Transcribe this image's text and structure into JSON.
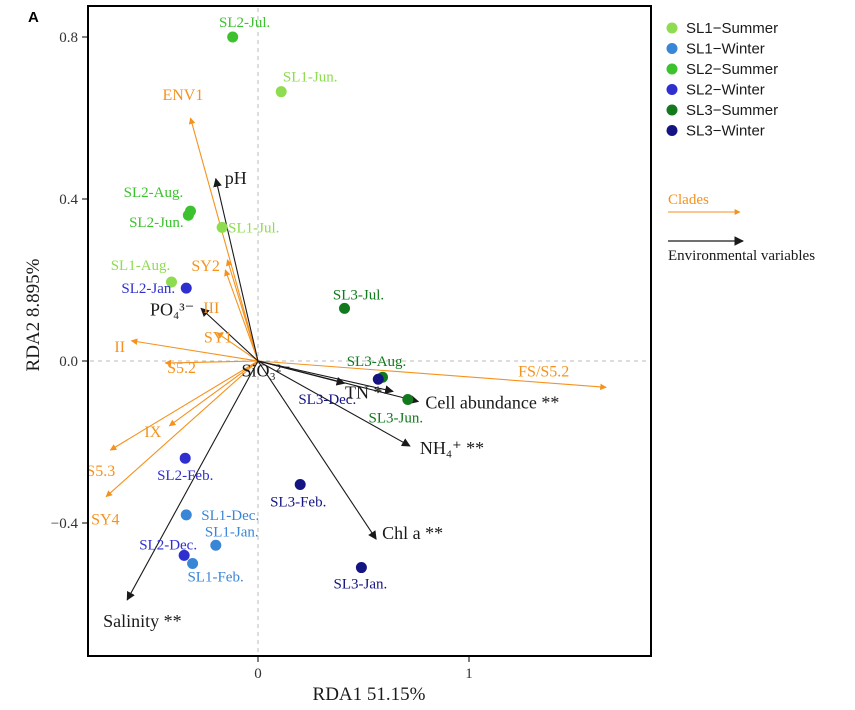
{
  "panel_label": "A",
  "chart_data": {
    "type": "scatter",
    "subtype": "RDA biplot",
    "xlabel": "RDA1 51.15%",
    "ylabel": "RDA2 8.895%",
    "xlim": [
      -0.8,
      1.85
    ],
    "ylim": [
      -0.73,
      0.88
    ],
    "xticks": [
      0,
      1
    ],
    "yticks": [
      -0.4,
      0.0,
      0.4,
      0.8
    ],
    "xtick_labels": [
      "0",
      "1"
    ],
    "ytick_labels": [
      "−0.4",
      "0.0",
      "0.4",
      "0.8"
    ],
    "grid": false,
    "zero_lines": true,
    "legend_position": "top-right, outside plot",
    "groups": [
      {
        "name": "SL1−Summer",
        "color": "#8edc50"
      },
      {
        "name": "SL1−Winter",
        "color": "#3a86d6"
      },
      {
        "name": "SL2−Summer",
        "color": "#3cc22e"
      },
      {
        "name": "SL2−Winter",
        "color": "#2f2fcf"
      },
      {
        "name": "SL3−Summer",
        "color": "#127a1c"
      },
      {
        "name": "SL3−Winter",
        "color": "#141482"
      }
    ],
    "points": [
      {
        "label": "SL2-Jul.",
        "x": -0.12,
        "y": 0.8,
        "group": 2
      },
      {
        "label": "SL1-Jun.",
        "x": 0.11,
        "y": 0.665,
        "group": 0
      },
      {
        "label": "SL2-Aug.",
        "x": -0.32,
        "y": 0.37,
        "group": 2
      },
      {
        "label": "SL2-Jun.",
        "x": -0.33,
        "y": 0.36,
        "group": 2
      },
      {
        "label": "SL1-Jul.",
        "x": -0.17,
        "y": 0.33,
        "group": 0
      },
      {
        "label": "SL1-Aug.",
        "x": -0.41,
        "y": 0.195,
        "group": 0
      },
      {
        "label": "SL2-Jan.",
        "x": -0.34,
        "y": 0.18,
        "group": 3
      },
      {
        "label": "SL3-Jul.",
        "x": 0.41,
        "y": 0.13,
        "group": 4
      },
      {
        "label": "SL3-Aug.",
        "x": 0.59,
        "y": -0.04,
        "group": 4
      },
      {
        "label": "SL3-Dec.",
        "x": 0.57,
        "y": -0.045,
        "group": 5
      },
      {
        "label": "SL3-Jun.",
        "x": 0.71,
        "y": -0.095,
        "group": 4
      },
      {
        "label": "SL2-Feb.",
        "x": -0.345,
        "y": -0.24,
        "group": 3
      },
      {
        "label": "SL3-Feb.",
        "x": 0.2,
        "y": -0.305,
        "group": 5
      },
      {
        "label": "SL1-Dec.",
        "x": -0.34,
        "y": -0.38,
        "group": 1
      },
      {
        "label": "SL1-Jan.",
        "x": -0.2,
        "y": -0.455,
        "group": 1
      },
      {
        "label": "SL2-Dec.",
        "x": -0.35,
        "y": -0.48,
        "group": 3
      },
      {
        "label": "SL1-Feb.",
        "x": -0.31,
        "y": -0.5,
        "group": 1
      },
      {
        "label": "SL3-Jan.",
        "x": 0.49,
        "y": -0.51,
        "group": 5
      }
    ],
    "clade_arrows": [
      {
        "label": "ENV1",
        "x": -0.32,
        "y": 0.6
      },
      {
        "label": "SY2",
        "x": -0.145,
        "y": 0.25
      },
      {
        "label": "III",
        "x": -0.155,
        "y": 0.225
      },
      {
        "label": "SY1",
        "x": -0.195,
        "y": 0.07
      },
      {
        "label": "II",
        "x": -0.6,
        "y": 0.05
      },
      {
        "label": "S5.2",
        "x": -0.44,
        "y": -0.005
      },
      {
        "label": "S5.3",
        "x": -0.7,
        "y": -0.22
      },
      {
        "label": "IX",
        "x": -0.42,
        "y": -0.16
      },
      {
        "label": "SY4",
        "x": -0.72,
        "y": -0.335
      },
      {
        "label": "FS/S5.2",
        "x": 1.65,
        "y": -0.065
      }
    ],
    "env_arrows": [
      {
        "label": "pH",
        "x": -0.2,
        "y": 0.45
      },
      {
        "label": "PO₄³⁻",
        "x": -0.27,
        "y": 0.13
      },
      {
        "label": "SiO₃²⁻",
        "x": 0.41,
        "y": -0.055
      },
      {
        "label": "TN *",
        "x": 0.64,
        "y": -0.075
      },
      {
        "label": "Cell abundance **",
        "x": 0.76,
        "y": -0.1
      },
      {
        "label": "NH₄⁺ **",
        "x": 0.72,
        "y": -0.21
      },
      {
        "label": "Chl a **",
        "x": 0.56,
        "y": -0.44
      },
      {
        "label": "Salinity **",
        "x": -0.62,
        "y": -0.59
      }
    ],
    "arrow_legend": [
      {
        "label": "Clades",
        "color": "#f5921e"
      },
      {
        "label": "Environmental variables",
        "color": "#1a1a1a"
      }
    ]
  }
}
